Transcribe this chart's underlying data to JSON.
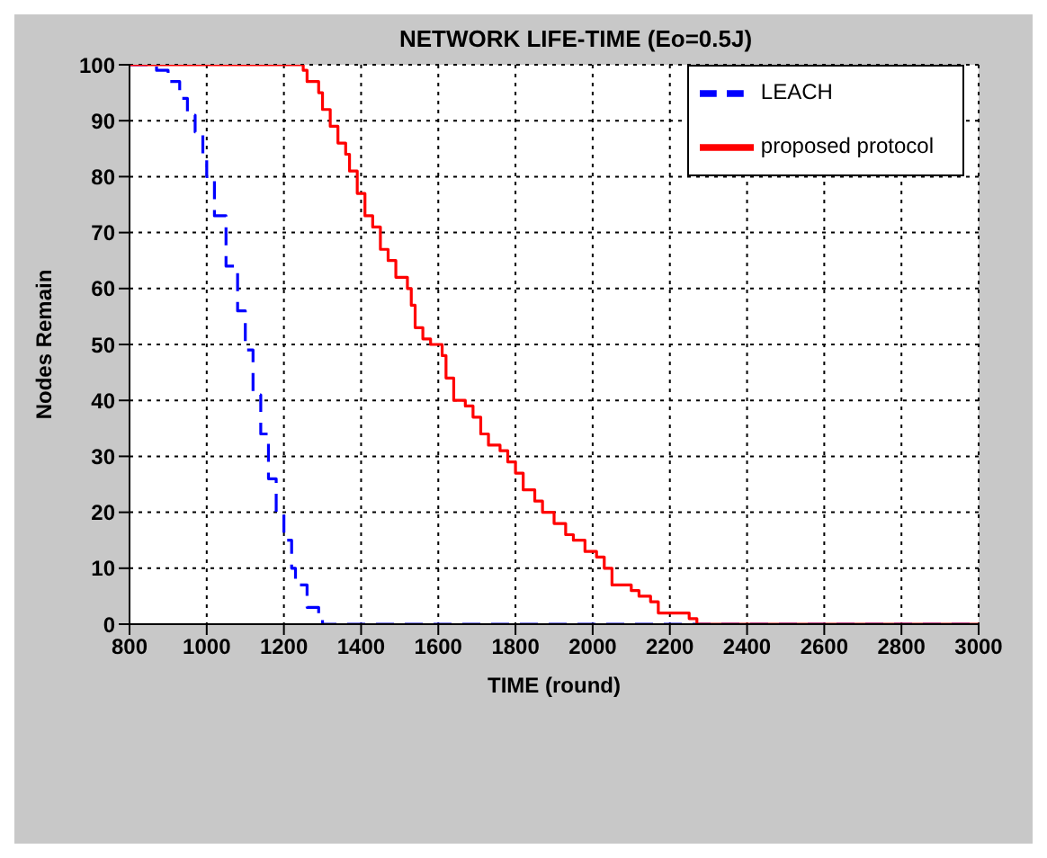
{
  "chart_data": {
    "type": "step",
    "title": "NETWORK LIFE-TIME (Eo=0.5J)",
    "xlabel": "TIME (round)",
    "ylabel": "Nodes Remain",
    "xlim": [
      800,
      3000
    ],
    "xticks": [
      800,
      1000,
      1200,
      1400,
      1600,
      1800,
      2000,
      2200,
      2400,
      2600,
      2800,
      3000
    ],
    "ylim": [
      0,
      100
    ],
    "yticks": [
      0,
      10,
      20,
      30,
      40,
      50,
      60,
      70,
      80,
      90,
      100
    ],
    "grid": true,
    "legend": "top right",
    "series": [
      {
        "name": "LEACH",
        "color": "#0000ff",
        "line_style": "dashed",
        "x": [
          800,
          850,
          870,
          900,
          930,
          950,
          970,
          990,
          1000,
          1020,
          1050,
          1080,
          1100,
          1120,
          1140,
          1160,
          1180,
          1200,
          1220,
          1230,
          1260,
          1290,
          1300,
          3000
        ],
        "values": [
          100,
          100,
          99,
          97,
          94,
          91,
          88,
          83,
          80,
          73,
          64,
          56,
          49,
          41,
          34,
          26,
          20,
          15,
          10,
          7,
          3,
          1,
          0,
          0
        ]
      },
      {
        "name": "proposed protocol",
        "color": "#ff0000",
        "line_style": "solid",
        "x": [
          800,
          1230,
          1250,
          1260,
          1290,
          1300,
          1320,
          1340,
          1360,
          1370,
          1390,
          1410,
          1430,
          1450,
          1470,
          1490,
          1520,
          1530,
          1540,
          1560,
          1580,
          1610,
          1620,
          1640,
          1670,
          1690,
          1710,
          1730,
          1760,
          1780,
          1800,
          1820,
          1850,
          1870,
          1900,
          1930,
          1950,
          1980,
          2010,
          2030,
          2050,
          2100,
          2120,
          2150,
          2170,
          2230,
          2250,
          2270,
          3000
        ],
        "values": [
          100,
          100,
          99,
          97,
          95,
          92,
          89,
          86,
          84,
          81,
          77,
          73,
          71,
          67,
          65,
          62,
          60,
          57,
          53,
          51,
          50,
          48,
          44,
          40,
          39,
          37,
          34,
          32,
          31,
          29,
          27,
          24,
          22,
          20,
          18,
          16,
          15,
          13,
          12,
          10,
          7,
          6,
          5,
          4,
          2,
          2,
          1,
          0,
          0
        ]
      }
    ]
  }
}
